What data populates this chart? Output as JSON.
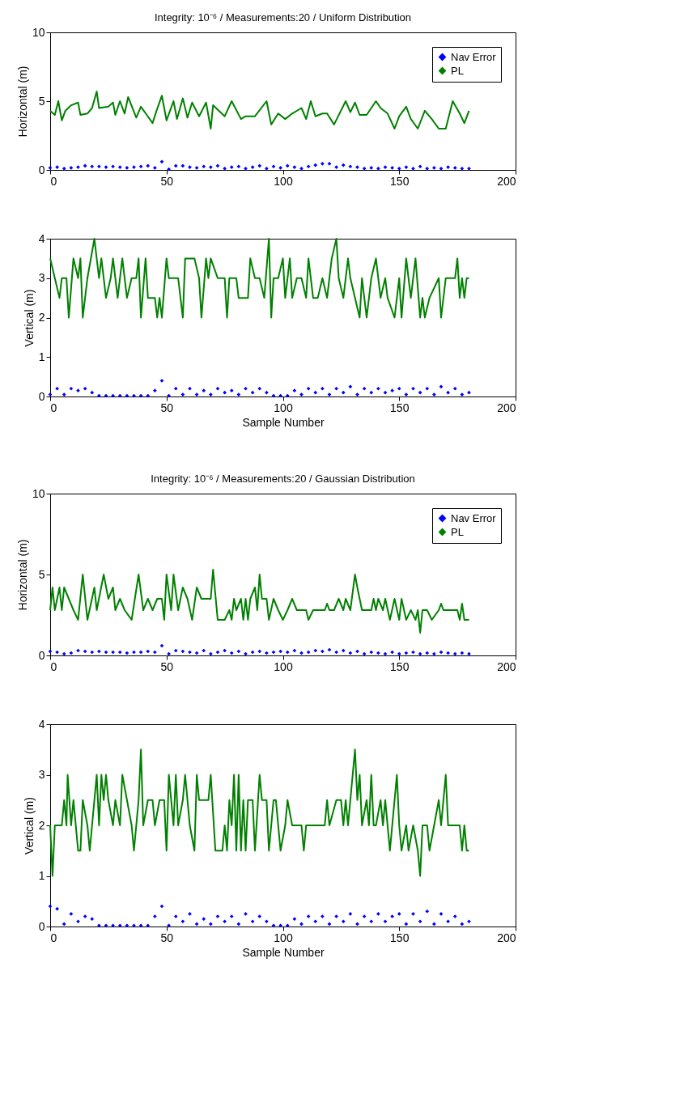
{
  "chart_data": [
    {
      "type": "line",
      "title": "Integrity: 10⁻⁶ / Measurements:20 / Uniform Distribution",
      "ylabel": "Horizontal (m)",
      "xlim": [
        0,
        200
      ],
      "xticks": [
        0,
        50,
        100,
        150,
        200
      ],
      "ylim": [
        0,
        10
      ],
      "yticks": [
        0,
        5,
        10
      ],
      "grid": false,
      "legend": "top right",
      "series": [
        {
          "name": "Nav Error",
          "type": "scatter",
          "marker": "diamond",
          "color": "#0000ff",
          "x": [
            0,
            3,
            6,
            9,
            12,
            15,
            18,
            21,
            24,
            27,
            30,
            33,
            36,
            39,
            42,
            45,
            48,
            51,
            54,
            57,
            60,
            63,
            66,
            69,
            72,
            75,
            78,
            81,
            84,
            87,
            90,
            93,
            96,
            99,
            102,
            105,
            108,
            111,
            114,
            117,
            120,
            123,
            126,
            129,
            132,
            135,
            138,
            141,
            144,
            147,
            150,
            153,
            156,
            159,
            162,
            165,
            168,
            171,
            174,
            177,
            180
          ],
          "values": [
            0.15,
            0.2,
            0.1,
            0.15,
            0.2,
            0.3,
            0.25,
            0.25,
            0.2,
            0.25,
            0.2,
            0.15,
            0.2,
            0.25,
            0.3,
            0.15,
            0.6,
            0.05,
            0.3,
            0.3,
            0.2,
            0.15,
            0.25,
            0.2,
            0.3,
            0.1,
            0.2,
            0.25,
            0.1,
            0.2,
            0.3,
            0.1,
            0.25,
            0.15,
            0.3,
            0.2,
            0.1,
            0.25,
            0.35,
            0.45,
            0.45,
            0.2,
            0.35,
            0.25,
            0.2,
            0.1,
            0.15,
            0.1,
            0.2,
            0.15,
            0.1,
            0.2,
            0.1,
            0.25,
            0.1,
            0.15,
            0.1,
            0.2,
            0.15,
            0.1,
            0.1
          ]
        },
        {
          "name": "PL",
          "marker": "none",
          "line_style": "solid",
          "color": "#008000",
          "x": [
            0,
            2,
            3.5,
            5,
            6.5,
            9,
            12,
            13,
            16,
            18,
            20,
            21,
            25,
            27,
            28,
            30,
            32,
            33.5,
            37,
            39,
            41.5,
            44,
            45.5,
            48,
            50,
            53,
            54.5,
            57,
            59,
            61,
            64,
            67,
            69,
            70,
            75,
            78,
            82,
            84,
            88,
            93,
            95,
            98,
            101,
            104,
            108,
            110,
            112,
            114,
            117,
            119,
            122,
            127,
            129,
            131,
            133,
            136,
            140,
            142,
            145,
            148,
            150,
            153,
            155,
            158,
            161,
            164,
            167,
            170,
            173,
            176,
            178,
            180
          ],
          "values": [
            4.3,
            4.0,
            5.0,
            3.6,
            4.3,
            4.7,
            4.9,
            4.0,
            4.1,
            4.5,
            5.7,
            4.5,
            4.6,
            4.9,
            4.0,
            5.0,
            4.1,
            5.3,
            3.8,
            4.6,
            4.0,
            3.4,
            4.2,
            5.4,
            3.6,
            5.0,
            3.7,
            5.2,
            3.8,
            4.9,
            3.9,
            4.9,
            3.0,
            4.7,
            3.9,
            5.0,
            3.7,
            3.9,
            3.9,
            5.0,
            3.3,
            4.1,
            3.7,
            4.1,
            4.5,
            3.7,
            5.0,
            3.9,
            4.1,
            4.1,
            3.3,
            5.0,
            4.2,
            4.9,
            4.0,
            4.0,
            5.0,
            4.5,
            4.1,
            3.0,
            3.9,
            4.6,
            3.7,
            3.0,
            4.3,
            3.7,
            3.0,
            3.0,
            5.0,
            4.1,
            3.4,
            4.3
          ]
        }
      ]
    },
    {
      "type": "line",
      "ylabel": "Vertical (m)",
      "xlabel": "Sample Number",
      "xlim": [
        0,
        200
      ],
      "xticks": [
        0,
        50,
        100,
        150,
        200
      ],
      "ylim": [
        0,
        4
      ],
      "yticks": [
        0,
        1,
        2,
        3,
        4
      ],
      "grid": false,
      "legend": false,
      "series": [
        {
          "type": "scatter",
          "marker": "diamond",
          "color": "#0000ff",
          "x": [
            0,
            3,
            6,
            9,
            12,
            15,
            18,
            21,
            24,
            27,
            30,
            33,
            36,
            39,
            42,
            45,
            48,
            51,
            54,
            57,
            60,
            63,
            66,
            69,
            72,
            75,
            78,
            81,
            84,
            87,
            90,
            93,
            96,
            99,
            102,
            105,
            108,
            111,
            114,
            117,
            120,
            123,
            126,
            129,
            132,
            135,
            138,
            141,
            144,
            147,
            150,
            153,
            156,
            159,
            162,
            165,
            168,
            171,
            174,
            177,
            180
          ],
          "values": [
            0.05,
            0.2,
            0.05,
            0.2,
            0.15,
            0.2,
            0.1,
            0.02,
            0.02,
            0.02,
            0.02,
            0.02,
            0.02,
            0.02,
            0.02,
            0.15,
            0.4,
            0.02,
            0.2,
            0.05,
            0.2,
            0.05,
            0.15,
            0.05,
            0.2,
            0.1,
            0.15,
            0.05,
            0.2,
            0.1,
            0.2,
            0.1,
            0.02,
            0.02,
            0.02,
            0.15,
            0.05,
            0.2,
            0.1,
            0.2,
            0.05,
            0.2,
            0.1,
            0.25,
            0.05,
            0.2,
            0.1,
            0.2,
            0.1,
            0.15,
            0.2,
            0.05,
            0.2,
            0.1,
            0.2,
            0.05,
            0.25,
            0.1,
            0.2,
            0.05,
            0.1
          ]
        },
        {
          "marker": "none",
          "line_style": "solid",
          "color": "#008000",
          "x": [
            0,
            2,
            4,
            5,
            7,
            8,
            10,
            12,
            13,
            14,
            16,
            19,
            21,
            22,
            24,
            26,
            27,
            29,
            31,
            33,
            35,
            37,
            38,
            39,
            41,
            42,
            45,
            46,
            47,
            48,
            50,
            51,
            55,
            57,
            58,
            62,
            64,
            65,
            67,
            68,
            69,
            72,
            75,
            76,
            77,
            80,
            81,
            85,
            86,
            88,
            90,
            92,
            94,
            95,
            96,
            98,
            100,
            101,
            103,
            104,
            106,
            108,
            110,
            111,
            113,
            115,
            117,
            119,
            121,
            123,
            124,
            126,
            128,
            129,
            133,
            134,
            136,
            138,
            140,
            142,
            144,
            145,
            148,
            150,
            151,
            153,
            155,
            157,
            159,
            160,
            161,
            163,
            167,
            168,
            170,
            174,
            175,
            176,
            177,
            178,
            179,
            180
          ],
          "values": [
            3.5,
            3.0,
            2.5,
            3.0,
            3.0,
            2.0,
            3.5,
            3.0,
            3.5,
            2.0,
            3.0,
            4.0,
            3.0,
            3.5,
            2.5,
            3.0,
            3.5,
            2.5,
            3.5,
            2.5,
            3.0,
            3.0,
            3.5,
            2.0,
            3.5,
            2.5,
            2.5,
            2.0,
            2.5,
            2.0,
            3.5,
            3.0,
            3.0,
            2.0,
            3.5,
            3.5,
            3.0,
            2.0,
            3.5,
            3.0,
            3.5,
            3.0,
            3.0,
            2.0,
            3.0,
            3.0,
            2.5,
            2.5,
            3.5,
            3.0,
            3.0,
            2.5,
            4.0,
            2.0,
            3.0,
            3.0,
            3.5,
            2.5,
            3.5,
            2.5,
            3.0,
            3.0,
            2.5,
            3.5,
            2.5,
            2.5,
            3.0,
            2.5,
            3.5,
            4.0,
            3.0,
            2.5,
            3.5,
            3.0,
            2.0,
            3.0,
            2.0,
            3.0,
            3.5,
            2.5,
            3.0,
            2.5,
            2.0,
            3.0,
            2.0,
            3.5,
            2.5,
            3.5,
            2.0,
            2.5,
            2.0,
            2.5,
            3.0,
            2.0,
            3.0,
            3.0,
            3.5,
            2.5,
            3.0,
            2.5,
            3.0,
            3.0
          ]
        }
      ]
    },
    {
      "type": "line",
      "title": "Integrity: 10⁻⁶ / Measurements:20 / Gaussian Distribution",
      "ylabel": "Horizontal (m)",
      "xlim": [
        0,
        200
      ],
      "xticks": [
        0,
        50,
        100,
        150,
        200
      ],
      "ylim": [
        0,
        10
      ],
      "yticks": [
        0,
        5,
        10
      ],
      "grid": false,
      "legend": "top right",
      "series": [
        {
          "name": "Nav Error",
          "type": "scatter",
          "marker": "diamond",
          "color": "#0000ff",
          "x": [
            0,
            3,
            6,
            9,
            12,
            15,
            18,
            21,
            24,
            27,
            30,
            33,
            36,
            39,
            42,
            45,
            48,
            51,
            54,
            57,
            60,
            63,
            66,
            69,
            72,
            75,
            78,
            81,
            84,
            87,
            90,
            93,
            96,
            99,
            102,
            105,
            108,
            111,
            114,
            117,
            120,
            123,
            126,
            129,
            132,
            135,
            138,
            141,
            144,
            147,
            150,
            153,
            156,
            159,
            162,
            165,
            168,
            171,
            174,
            177,
            180
          ],
          "values": [
            0.25,
            0.2,
            0.1,
            0.15,
            0.3,
            0.25,
            0.2,
            0.25,
            0.2,
            0.2,
            0.2,
            0.15,
            0.2,
            0.2,
            0.25,
            0.2,
            0.6,
            0.1,
            0.3,
            0.25,
            0.2,
            0.15,
            0.3,
            0.1,
            0.2,
            0.3,
            0.15,
            0.25,
            0.1,
            0.2,
            0.25,
            0.15,
            0.2,
            0.25,
            0.2,
            0.3,
            0.15,
            0.2,
            0.3,
            0.25,
            0.35,
            0.2,
            0.3,
            0.15,
            0.25,
            0.1,
            0.2,
            0.15,
            0.1,
            0.2,
            0.1,
            0.15,
            0.2,
            0.1,
            0.15,
            0.1,
            0.2,
            0.15,
            0.1,
            0.15,
            0.1
          ]
        },
        {
          "name": "PL",
          "marker": "none",
          "line_style": "solid",
          "color": "#008000",
          "x": [
            0,
            1,
            2,
            4,
            5,
            6,
            8,
            10,
            12,
            14,
            16,
            19,
            20,
            23,
            25,
            27,
            28,
            30,
            32,
            35,
            38,
            40,
            42,
            44,
            46,
            48,
            49,
            50,
            52,
            53,
            55,
            57,
            59,
            61,
            63,
            65,
            69,
            70,
            72,
            75,
            77,
            78,
            79,
            80,
            82,
            83,
            84,
            85,
            86,
            88,
            89,
            90,
            91,
            93,
            94,
            96,
            98,
            100,
            102,
            104,
            106,
            110,
            111,
            113,
            118,
            119,
            120,
            122,
            124,
            126,
            127,
            129,
            131,
            132,
            134,
            138,
            139,
            140,
            141,
            143,
            144,
            146,
            148,
            150,
            151,
            153,
            155,
            157,
            158,
            159,
            160,
            162,
            164,
            167,
            168,
            169,
            175,
            176,
            177,
            178,
            180
          ],
          "values": [
            2.8,
            4.2,
            2.8,
            4.2,
            2.8,
            4.2,
            3.5,
            2.8,
            2.2,
            5.0,
            2.2,
            4.2,
            2.8,
            5.0,
            3.5,
            4.2,
            2.8,
            3.5,
            2.8,
            2.2,
            5.0,
            2.8,
            3.5,
            2.8,
            3.5,
            3.5,
            2.2,
            5.0,
            2.8,
            5.0,
            2.8,
            4.2,
            3.5,
            2.2,
            4.2,
            3.5,
            3.5,
            5.3,
            2.2,
            2.2,
            2.8,
            2.2,
            3.5,
            2.8,
            3.5,
            2.2,
            3.5,
            2.2,
            3.5,
            4.2,
            2.8,
            5.0,
            3.5,
            3.5,
            2.2,
            3.5,
            2.8,
            2.2,
            2.8,
            3.5,
            2.8,
            2.8,
            2.2,
            2.8,
            2.8,
            3.2,
            2.8,
            2.8,
            3.5,
            2.8,
            3.5,
            2.8,
            5.0,
            4.2,
            2.8,
            2.8,
            3.5,
            2.8,
            3.5,
            2.8,
            3.5,
            2.2,
            3.5,
            2.2,
            3.5,
            2.2,
            2.8,
            2.2,
            2.8,
            1.4,
            2.8,
            2.8,
            2.2,
            2.8,
            3.2,
            2.8,
            2.8,
            2.2,
            3.2,
            2.2,
            2.2
          ]
        }
      ]
    },
    {
      "type": "line",
      "ylabel": "Vertical (m)",
      "xlabel": "Sample Number",
      "xlim": [
        0,
        200
      ],
      "xticks": [
        0,
        50,
        100,
        150,
        200
      ],
      "ylim": [
        0,
        4
      ],
      "yticks": [
        0,
        1,
        2,
        3,
        4
      ],
      "grid": false,
      "legend": false,
      "series": [
        {
          "type": "scatter",
          "marker": "diamond",
          "color": "#0000ff",
          "x": [
            0,
            3,
            6,
            9,
            12,
            15,
            18,
            21,
            24,
            27,
            30,
            33,
            36,
            39,
            42,
            45,
            48,
            51,
            54,
            57,
            60,
            63,
            66,
            69,
            72,
            75,
            78,
            81,
            84,
            87,
            90,
            93,
            96,
            99,
            102,
            105,
            108,
            111,
            114,
            117,
            120,
            123,
            126,
            129,
            132,
            135,
            138,
            141,
            144,
            147,
            150,
            153,
            156,
            159,
            162,
            165,
            168,
            171,
            174,
            177,
            180
          ],
          "values": [
            0.4,
            0.35,
            0.05,
            0.25,
            0.1,
            0.2,
            0.15,
            0.02,
            0.02,
            0.02,
            0.02,
            0.02,
            0.02,
            0.02,
            0.02,
            0.2,
            0.4,
            0.02,
            0.2,
            0.1,
            0.25,
            0.05,
            0.15,
            0.05,
            0.2,
            0.1,
            0.2,
            0.05,
            0.25,
            0.1,
            0.2,
            0.1,
            0.02,
            0.02,
            0.02,
            0.15,
            0.05,
            0.2,
            0.1,
            0.2,
            0.05,
            0.2,
            0.1,
            0.25,
            0.05,
            0.2,
            0.1,
            0.25,
            0.1,
            0.2,
            0.25,
            0.05,
            0.25,
            0.1,
            0.3,
            0.05,
            0.25,
            0.1,
            0.2,
            0.05,
            0.1
          ]
        },
        {
          "marker": "none",
          "line_style": "solid",
          "color": "#008000",
          "x": [
            0,
            1,
            2,
            5,
            6,
            7,
            7.5,
            9,
            10,
            12,
            13,
            14,
            16,
            17,
            18,
            20,
            21,
            22,
            23,
            24,
            25,
            27,
            28,
            30,
            31,
            33,
            35,
            36,
            38,
            39,
            40,
            42,
            44,
            45,
            47,
            49,
            50,
            51,
            53,
            54,
            55,
            57,
            58,
            60,
            62,
            63,
            64,
            68,
            69,
            71,
            74,
            75,
            76,
            77,
            78,
            79,
            80,
            81,
            82,
            83,
            84,
            85,
            87,
            88,
            90,
            91,
            93,
            94,
            96,
            97,
            99,
            101,
            102,
            104,
            108,
            109,
            110,
            118,
            119,
            120,
            123,
            125,
            126,
            127,
            128,
            129,
            131,
            132,
            133,
            134,
            136,
            137,
            138,
            139,
            140,
            142,
            143,
            144,
            146,
            148,
            149,
            150,
            151,
            153,
            154,
            156,
            158,
            159,
            160,
            162,
            163,
            165,
            167,
            168,
            170,
            171,
            176,
            177,
            178,
            179,
            180
          ],
          "values": [
            2.0,
            1.0,
            2.0,
            2.0,
            2.5,
            2.0,
            3.0,
            2.0,
            2.5,
            1.5,
            1.5,
            2.5,
            2.0,
            1.5,
            2.0,
            3.0,
            2.0,
            3.0,
            2.5,
            3.0,
            2.5,
            2.0,
            2.5,
            2.0,
            3.0,
            2.5,
            2.0,
            1.5,
            2.5,
            3.5,
            2.0,
            2.5,
            2.5,
            2.0,
            2.5,
            2.5,
            1.5,
            3.0,
            2.0,
            3.0,
            2.0,
            2.5,
            3.0,
            2.0,
            1.5,
            3.0,
            2.5,
            2.5,
            3.0,
            1.5,
            1.5,
            2.0,
            1.5,
            2.5,
            2.0,
            3.0,
            1.5,
            3.0,
            1.5,
            2.5,
            1.5,
            2.5,
            2.5,
            1.5,
            3.0,
            2.5,
            2.5,
            1.5,
            2.5,
            2.5,
            1.5,
            2.0,
            2.5,
            2.0,
            2.0,
            1.5,
            2.0,
            2.0,
            2.5,
            2.0,
            2.5,
            2.5,
            2.0,
            2.5,
            2.0,
            2.5,
            3.5,
            2.5,
            3.0,
            2.0,
            2.5,
            2.0,
            3.0,
            2.0,
            2.0,
            2.5,
            2.0,
            2.5,
            1.5,
            2.5,
            3.0,
            2.0,
            1.5,
            2.0,
            1.5,
            2.0,
            1.5,
            1.0,
            2.0,
            2.0,
            1.5,
            2.0,
            2.5,
            2.0,
            3.0,
            2.0,
            2.0,
            1.5,
            2.0,
            1.5,
            1.5
          ]
        }
      ]
    }
  ]
}
